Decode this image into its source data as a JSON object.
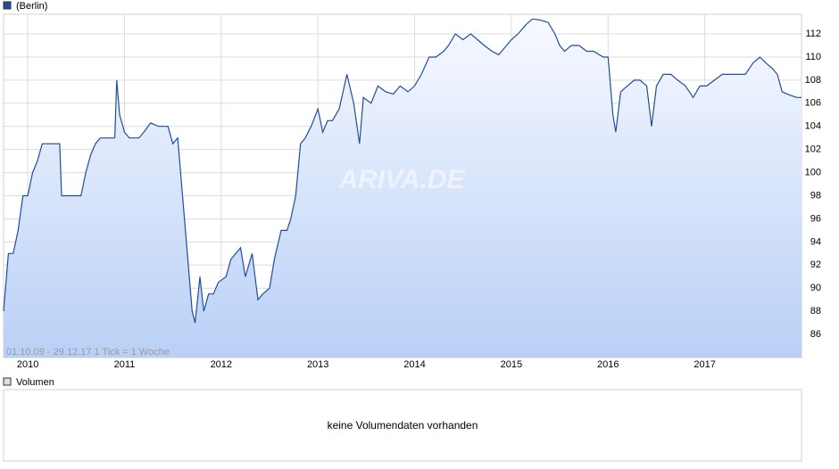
{
  "chart_data": {
    "type": "line",
    "annotation": "01.10.09 - 29.12.17   1 Tick = 1 Woche",
    "watermark": "ARIVA.DE",
    "x": [
      2009.75,
      2009.77,
      2009.8,
      2009.85,
      2009.9,
      2009.95,
      2010.0,
      2010.05,
      2010.1,
      2010.15,
      2010.33,
      2010.35,
      2010.55,
      2010.6,
      2010.65,
      2010.7,
      2010.75,
      2010.9,
      2010.92,
      2010.95,
      2011.0,
      2011.05,
      2011.15,
      2011.2,
      2011.27,
      2011.35,
      2011.45,
      2011.5,
      2011.55,
      2011.6,
      2011.65,
      2011.7,
      2011.73,
      2011.78,
      2011.82,
      2011.87,
      2011.92,
      2011.97,
      2012.05,
      2012.1,
      2012.2,
      2012.25,
      2012.32,
      2012.38,
      2012.43,
      2012.5,
      2012.55,
      2012.62,
      2012.68,
      2012.72,
      2012.77,
      2012.82,
      2012.87,
      2012.93,
      2013.0,
      2013.05,
      2013.1,
      2013.15,
      2013.22,
      2013.3,
      2013.37,
      2013.43,
      2013.47,
      2013.55,
      2013.62,
      2013.7,
      2013.78,
      2013.85,
      2013.93,
      2014.0,
      2014.07,
      2014.15,
      2014.22,
      2014.3,
      2014.35,
      2014.42,
      2014.5,
      2014.58,
      2014.65,
      2014.72,
      2014.8,
      2014.87,
      2014.95,
      2015.0,
      2015.07,
      2015.15,
      2015.22,
      2015.3,
      2015.38,
      2015.45,
      2015.5,
      2015.55,
      2015.62,
      2015.7,
      2015.78,
      2015.85,
      2015.95,
      2016.0,
      2016.05,
      2016.08,
      2016.13,
      2016.2,
      2016.27,
      2016.33,
      2016.4,
      2016.45,
      2016.5,
      2016.57,
      2016.65,
      2016.72,
      2016.8,
      2016.88,
      2016.95,
      2017.02,
      2017.1,
      2017.18,
      2017.25,
      2017.35,
      2017.42,
      2017.5,
      2017.57,
      2017.63,
      2017.7,
      2017.75,
      2017.8,
      2017.88,
      2017.95,
      2018.0
    ],
    "series": [
      {
        "name": "(Berlin)",
        "color": "#1f4e9e",
        "values": [
          88,
          90,
          93,
          93,
          95,
          98,
          98,
          100,
          101,
          102.5,
          102.5,
          98,
          98,
          100,
          101.5,
          102.5,
          103,
          103,
          108,
          105,
          103.5,
          103,
          103,
          103.5,
          104.3,
          104,
          104,
          102.5,
          103,
          98,
          93,
          88,
          87,
          91,
          88,
          89.5,
          89.5,
          90.5,
          91,
          92.5,
          93.5,
          91,
          93,
          89,
          89.5,
          90,
          92.5,
          95,
          95,
          96,
          98,
          102.5,
          103,
          104,
          105.5,
          103.5,
          104.5,
          104.5,
          105.5,
          108.5,
          106,
          102.5,
          106.5,
          106,
          107.5,
          107,
          106.8,
          107.5,
          107,
          107.5,
          108.5,
          110,
          110,
          110.5,
          111,
          112,
          111.5,
          112,
          111.5,
          111,
          110.5,
          110.2,
          111,
          111.5,
          112,
          112.8,
          113.3,
          113.2,
          113,
          112,
          111,
          110.5,
          111,
          111,
          110.5,
          110.5,
          110,
          110,
          105,
          103.5,
          107,
          107.5,
          108,
          108,
          107.5,
          104,
          107.5,
          108.5,
          108.5,
          108,
          107.5,
          106.5,
          107.5,
          107.5,
          108,
          108.5,
          108.5,
          108.5,
          108.5,
          109.5,
          110,
          109.5,
          109,
          108.5,
          107,
          106.7,
          106.5,
          106.5
        ]
      }
    ],
    "xlim": [
      2009.75,
      2018.0
    ],
    "xticks": [
      2010,
      2011,
      2012,
      2013,
      2014,
      2015,
      2016,
      2017
    ],
    "ylim": [
      84,
      113.7
    ],
    "yticks": [
      86,
      88,
      90,
      92,
      94,
      96,
      98,
      100,
      102,
      104,
      106,
      108,
      110,
      112
    ],
    "grid": true
  },
  "volume_panel": {
    "title": "Volumen",
    "message": "keine Volumendaten vorhanden"
  }
}
